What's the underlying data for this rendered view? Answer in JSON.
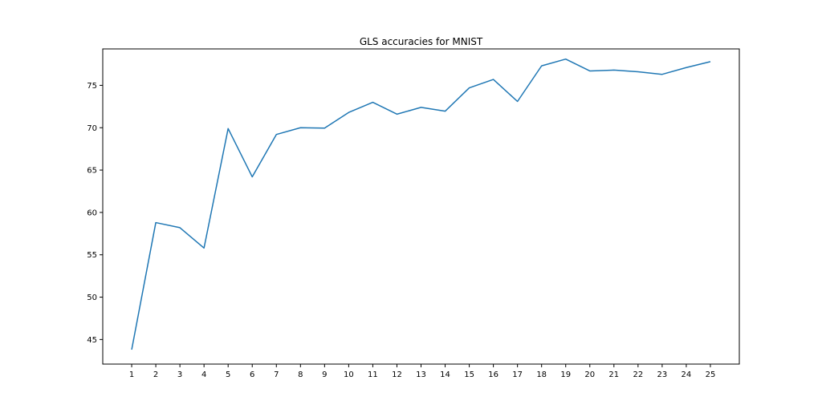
{
  "chart_data": {
    "type": "line",
    "title": "GLS accuracies for MNIST",
    "xlabel": "",
    "ylabel": "",
    "x": [
      1,
      2,
      3,
      4,
      5,
      6,
      7,
      8,
      9,
      10,
      11,
      12,
      13,
      14,
      15,
      16,
      17,
      18,
      19,
      20,
      21,
      22,
      23,
      24,
      25
    ],
    "x_ticks": [
      "1",
      "2",
      "3",
      "4",
      "5",
      "6",
      "7",
      "8",
      "9",
      "10",
      "11",
      "12",
      "13",
      "14",
      "15",
      "16",
      "17",
      "18",
      "19",
      "20",
      "21",
      "22",
      "23",
      "24",
      "25"
    ],
    "y_ticks": [
      "45",
      "50",
      "55",
      "60",
      "65",
      "70",
      "75"
    ],
    "series": [
      {
        "values": [
          43.8,
          58.8,
          58.2,
          55.8,
          69.9,
          64.2,
          69.2,
          70.0,
          69.95,
          71.8,
          73.0,
          71.6,
          72.4,
          71.95,
          74.7,
          75.7,
          73.1,
          77.3,
          78.1,
          76.7,
          76.8,
          76.6,
          76.3,
          77.1,
          77.8
        ]
      }
    ],
    "xlim": [
      -0.2,
      26.2
    ],
    "ylim": [
      42.1,
      79.3
    ],
    "grid": false,
    "colors": {
      "line": "#1f77b4",
      "axes": "#000000"
    }
  }
}
